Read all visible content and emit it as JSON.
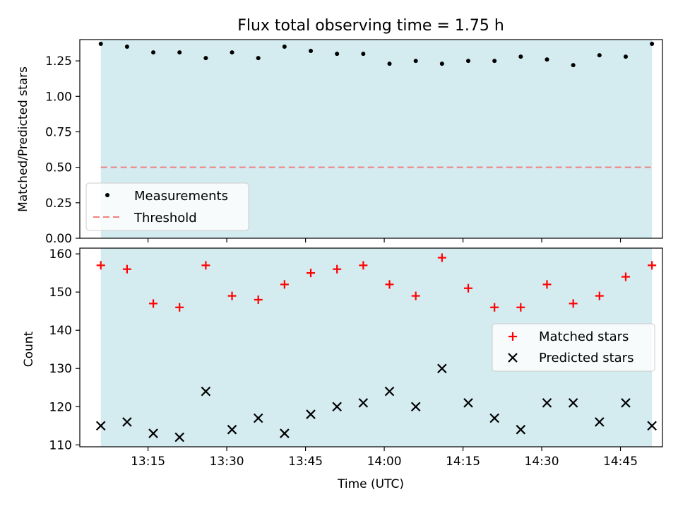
{
  "title": "Flux total observing time = 1.75 h",
  "colors": {
    "span": "#d4ebf0",
    "measure": "#000000",
    "threshold": "#f08080",
    "matched": "#ff0000",
    "predicted": "#000000"
  },
  "chart_data": [
    {
      "type": "scatter",
      "title": "Flux total observing time = 1.75 h",
      "xlabel": "",
      "ylabel": "Matched/Predicted stars",
      "xlim": [
        "13:02",
        "14:53"
      ],
      "ylim": [
        0,
        1.4
      ],
      "yticks": [
        "0.00",
        "0.25",
        "0.50",
        "0.75",
        "1.00",
        "1.25"
      ],
      "grid": false,
      "legend_position": "lower-left",
      "shaded_span": [
        "13:06",
        "14:51"
      ],
      "x": [
        "13:06",
        "13:11",
        "13:16",
        "13:21",
        "13:26",
        "13:31",
        "13:36",
        "13:41",
        "13:46",
        "13:51",
        "13:56",
        "14:01",
        "14:06",
        "14:11",
        "14:16",
        "14:21",
        "14:26",
        "14:31",
        "14:36",
        "14:41",
        "14:46",
        "14:51"
      ],
      "series": [
        {
          "name": "Measurements",
          "marker": "dot",
          "values": [
            1.37,
            1.35,
            1.31,
            1.31,
            1.27,
            1.31,
            1.27,
            1.35,
            1.32,
            1.3,
            1.3,
            1.23,
            1.25,
            1.23,
            1.25,
            1.25,
            1.28,
            1.26,
            1.22,
            1.29,
            1.28,
            1.37
          ]
        },
        {
          "name": "Threshold",
          "style": "dashed",
          "values": [
            0.5,
            0.5
          ]
        }
      ]
    },
    {
      "type": "scatter",
      "xlabel": "Time (UTC)",
      "ylabel": "Count",
      "xlim": [
        "13:02",
        "14:53"
      ],
      "ylim": [
        109.5,
        161.5
      ],
      "xticks": [
        "13:15",
        "13:30",
        "13:45",
        "14:00",
        "14:15",
        "14:30",
        "14:45"
      ],
      "yticks": [
        "110",
        "120",
        "130",
        "140",
        "150",
        "160"
      ],
      "grid": false,
      "legend_position": "right",
      "shaded_span": [
        "13:06",
        "14:51"
      ],
      "x": [
        "13:06",
        "13:11",
        "13:16",
        "13:21",
        "13:26",
        "13:31",
        "13:36",
        "13:41",
        "13:46",
        "13:51",
        "13:56",
        "14:01",
        "14:06",
        "14:11",
        "14:16",
        "14:21",
        "14:26",
        "14:31",
        "14:36",
        "14:41",
        "14:46",
        "14:51"
      ],
      "series": [
        {
          "name": "Matched stars",
          "marker": "plus",
          "values": [
            157,
            156,
            147,
            146,
            157,
            149,
            148,
            152,
            155,
            156,
            157,
            152,
            149,
            159,
            151,
            146,
            146,
            152,
            147,
            149,
            154,
            157
          ]
        },
        {
          "name": "Predicted stars",
          "marker": "x",
          "values": [
            115,
            116,
            113,
            112,
            124,
            114,
            117,
            113,
            118,
            120,
            121,
            124,
            120,
            130,
            121,
            117,
            114,
            121,
            121,
            116,
            121,
            115
          ]
        }
      ]
    }
  ]
}
